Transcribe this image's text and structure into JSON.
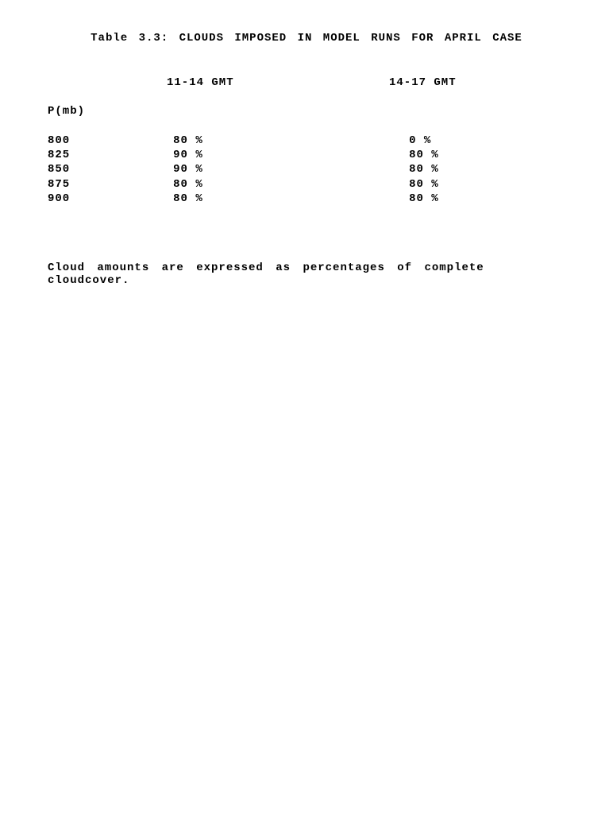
{
  "title": "Table 3.3: CLOUDS IMPOSED IN MODEL RUNS FOR APRIL CASE",
  "columns": {
    "a": "11-14 GMT",
    "b": "14-17 GMT"
  },
  "row_label": "P(mb)",
  "rows": [
    {
      "p": "800",
      "a": "80 %",
      "b": "0 %"
    },
    {
      "p": "825",
      "a": "90 %",
      "b": "80 %"
    },
    {
      "p": "850",
      "a": "90 %",
      "b": "80 %"
    },
    {
      "p": "875",
      "a": "80 %",
      "b": "80 %"
    },
    {
      "p": "900",
      "a": "80 %",
      "b": "80 %"
    }
  ],
  "footnote": "Cloud amounts are expressed as percentages of complete cloudcover."
}
